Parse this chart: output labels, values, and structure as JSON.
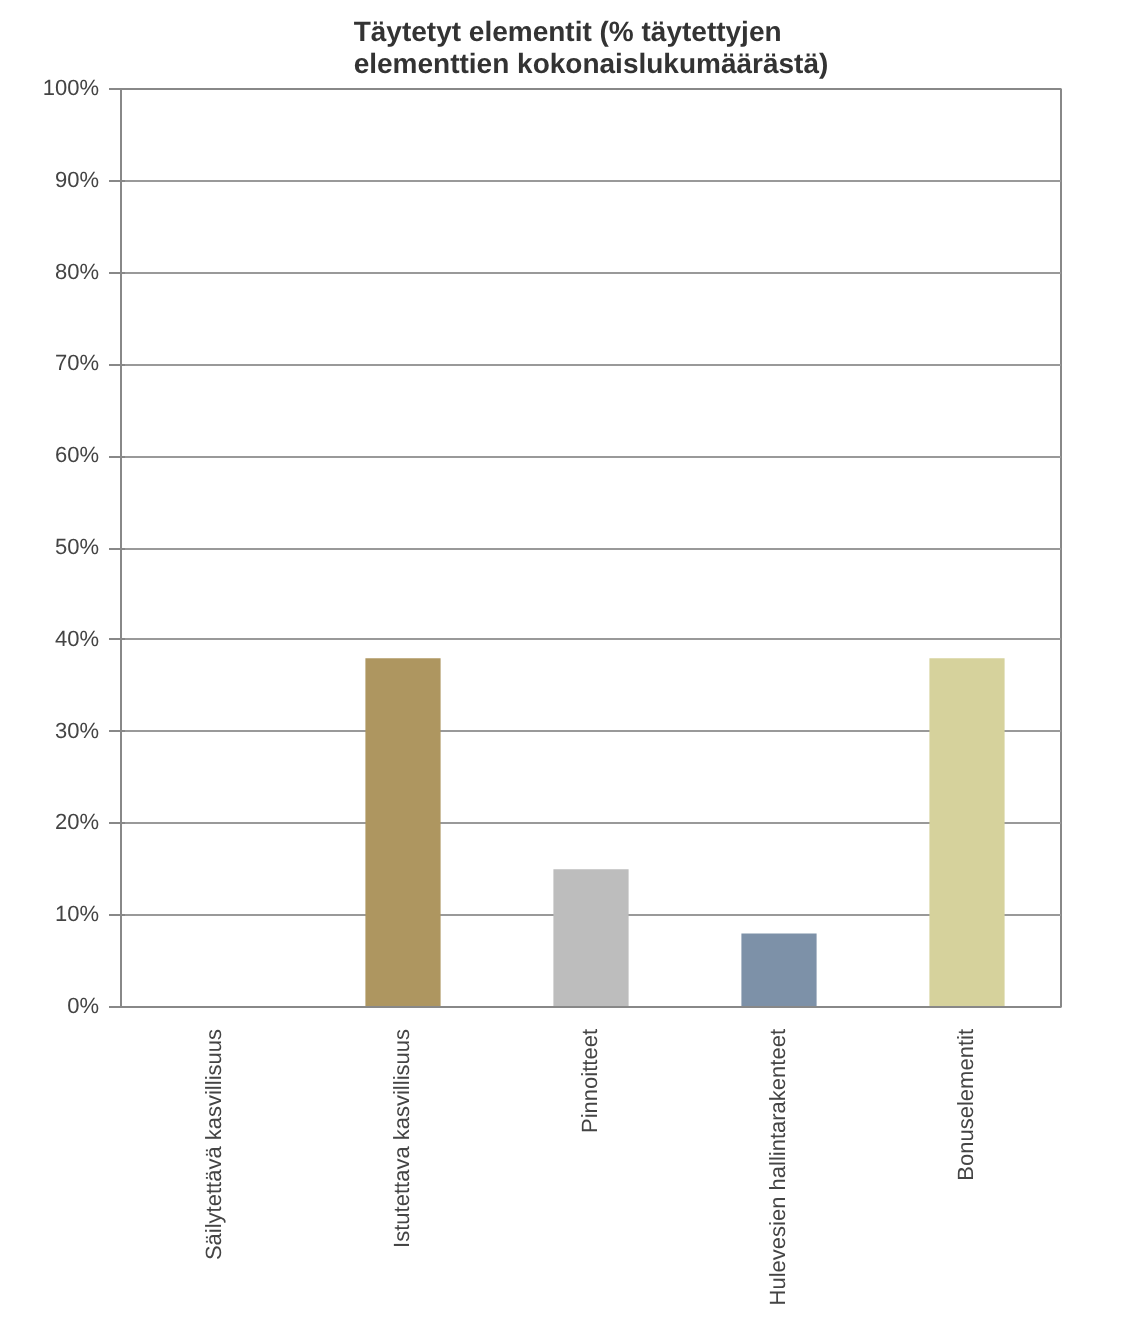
{
  "chart_data": {
    "type": "bar",
    "title": "Täytetyt elementit (% täytettyjen elementtien kokonaislukumäärästä)",
    "categories": [
      "Säilytettävä kasvillisuus",
      "Istutettava kasvillisuus",
      "Pinnoitteet",
      "Hulevesien hallintarakenteet",
      "Bonuselementit"
    ],
    "values": [
      0,
      38,
      15,
      8,
      38
    ],
    "colors": [
      "#a0a0a0",
      "#ae9660",
      "#bdbdbd",
      "#7d91a8",
      "#d6d29c"
    ],
    "ylim": [
      0,
      100
    ],
    "yticks": [
      {
        "value": 0,
        "label": "0%"
      },
      {
        "value": 10,
        "label": "10%"
      },
      {
        "value": 20,
        "label": "20%"
      },
      {
        "value": 30,
        "label": "30%"
      },
      {
        "value": 40,
        "label": "40%"
      },
      {
        "value": 50,
        "label": "50%"
      },
      {
        "value": 60,
        "label": "60%"
      },
      {
        "value": 70,
        "label": "70%"
      },
      {
        "value": 80,
        "label": "80%"
      },
      {
        "value": 90,
        "label": "90%"
      },
      {
        "value": 100,
        "label": "100%"
      }
    ],
    "grid": "y"
  }
}
